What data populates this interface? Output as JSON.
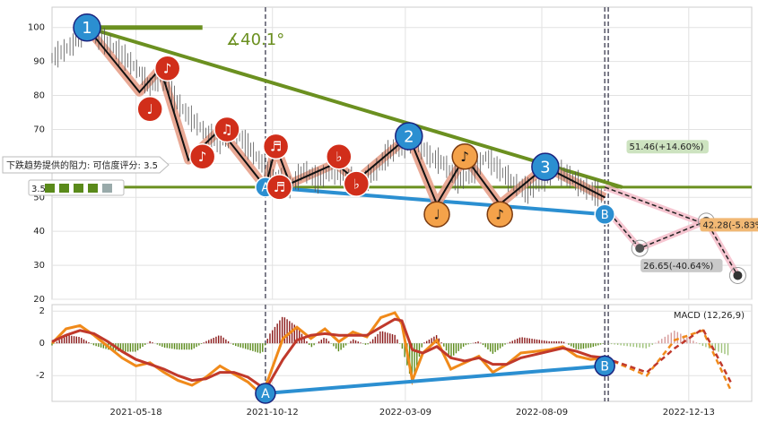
{
  "chart_data": {
    "type": "line",
    "panels": [
      {
        "name": "price",
        "ylim": [
          20,
          106
        ],
        "yticks": [
          20,
          30,
          40,
          50,
          60,
          70,
          80,
          90,
          100
        ],
        "series": [
          {
            "values": [
              [
                0,
                91
              ],
              [
                6,
                95
              ],
              [
                10,
                100
              ],
              [
                15,
                96
              ],
              [
                20,
                92
              ],
              [
                25,
                87
              ],
              [
                28,
                82
              ],
              [
                31,
                86
              ],
              [
                35,
                79
              ],
              [
                39,
                74
              ],
              [
                44,
                69
              ],
              [
                48,
                66
              ],
              [
                52,
                70
              ],
              [
                56,
                65
              ],
              [
                60,
                60
              ],
              [
                64,
                56
              ],
              [
                68,
                53
              ],
              [
                72,
                58
              ],
              [
                76,
                55
              ],
              [
                80,
                58
              ],
              [
                84,
                56
              ],
              [
                88,
                54
              ],
              [
                92,
                57
              ],
              [
                96,
                63
              ],
              [
                100,
                65
              ],
              [
                104,
                67
              ],
              [
                108,
                62
              ],
              [
                112,
                60
              ],
              [
                116,
                55
              ],
              [
                120,
                57
              ],
              [
                124,
                62
              ],
              [
                128,
                58
              ],
              [
                132,
                54
              ],
              [
                136,
                52
              ],
              [
                140,
                55
              ],
              [
                144,
                58
              ],
              [
                148,
                56
              ],
              [
                152,
                53
              ],
              [
                156,
                51
              ],
              [
                158,
                50
              ]
            ]
          }
        ],
        "zigzag": [
          [
            10,
            100
          ],
          [
            25,
            81
          ],
          [
            31,
            88
          ],
          [
            39,
            61
          ],
          [
            48,
            70
          ],
          [
            61,
            53
          ],
          [
            64,
            65
          ],
          [
            68,
            54
          ],
          [
            81,
            60
          ],
          [
            87,
            55
          ],
          [
            102,
            68
          ],
          [
            110,
            48
          ],
          [
            118,
            62
          ],
          [
            128,
            48
          ],
          [
            141,
            59
          ],
          [
            158,
            50
          ]
        ],
        "trend_down": [
          [
            10,
            100
          ],
          [
            163,
            53
          ]
        ],
        "support_line": 53,
        "support_lower": [
          [
            61,
            53
          ],
          [
            158,
            45
          ]
        ],
        "short_hline": [
          [
            10,
            100
          ],
          [
            43,
            100
          ]
        ],
        "waves": [
          {
            "x": 10,
            "y": 100,
            "label": "1",
            "kind": "blue"
          },
          {
            "x": 102,
            "y": 68,
            "label": "2",
            "kind": "blue"
          },
          {
            "x": 141,
            "y": 59,
            "label": "3",
            "kind": "blue"
          },
          {
            "x": 61,
            "y": 53,
            "label": "A",
            "kind": "blue_small"
          },
          {
            "x": 158,
            "y": 45,
            "label": "B",
            "kind": "blue_small"
          },
          {
            "x": 28,
            "y": 76,
            "label": "♩",
            "kind": "red"
          },
          {
            "x": 33,
            "y": 88,
            "label": "♪",
            "kind": "red"
          },
          {
            "x": 43,
            "y": 62,
            "label": "♪",
            "kind": "red"
          },
          {
            "x": 50,
            "y": 70,
            "label": "♫",
            "kind": "red"
          },
          {
            "x": 64,
            "y": 65,
            "label": "♬",
            "kind": "red"
          },
          {
            "x": 65,
            "y": 53,
            "label": "♬",
            "kind": "red"
          },
          {
            "x": 82,
            "y": 62,
            "label": "♭",
            "kind": "red"
          },
          {
            "x": 87,
            "y": 54,
            "label": "♭",
            "kind": "red"
          },
          {
            "x": 110,
            "y": 45,
            "label": "♩",
            "kind": "orange"
          },
          {
            "x": 118,
            "y": 62,
            "label": "♪",
            "kind": "orange"
          },
          {
            "x": 128,
            "y": 45,
            "label": "♪",
            "kind": "orange"
          }
        ],
        "forecast": [
          [
            158,
            47
          ],
          [
            168,
            35
          ],
          [
            187,
            43
          ],
          [
            196,
            27
          ]
        ],
        "forecast_line2": [
          [
            158,
            53
          ],
          [
            187,
            42
          ]
        ],
        "annotations": [
          {
            "text": "51.46(+14.60%)",
            "x": 165,
            "y": 64,
            "color": "#cde3c0"
          },
          {
            "text": "42.28(-5.83%)",
            "x": 186,
            "y": 41,
            "color": "#f1b874"
          },
          {
            "text": "26.65(-40.64%)",
            "x": 169,
            "y": 29,
            "color": "#c9c9c9"
          }
        ]
      },
      {
        "name": "macd",
        "ylim": [
          -3.6,
          2.4
        ],
        "yticks": [
          -2,
          0,
          2
        ],
        "label": "MACD (12,26,9)",
        "dif": [
          [
            0,
            0
          ],
          [
            4,
            0.9
          ],
          [
            8,
            1.1
          ],
          [
            12,
            0.5
          ],
          [
            16,
            -0.2
          ],
          [
            20,
            -0.9
          ],
          [
            24,
            -1.4
          ],
          [
            28,
            -1.2
          ],
          [
            32,
            -1.8
          ],
          [
            36,
            -2.3
          ],
          [
            40,
            -2.6
          ],
          [
            44,
            -2.1
          ],
          [
            48,
            -1.4
          ],
          [
            52,
            -1.9
          ],
          [
            56,
            -2.4
          ],
          [
            60,
            -3.2
          ],
          [
            62,
            -2.1
          ],
          [
            66,
            0.3
          ],
          [
            70,
            1.0
          ],
          [
            74,
            0.3
          ],
          [
            78,
            0.9
          ],
          [
            82,
            0.1
          ],
          [
            86,
            0.7
          ],
          [
            90,
            0.4
          ],
          [
            94,
            1.6
          ],
          [
            98,
            1.9
          ],
          [
            100,
            1.2
          ],
          [
            103,
            -2.3
          ],
          [
            106,
            -0.6
          ],
          [
            110,
            0.2
          ],
          [
            114,
            -1.6
          ],
          [
            118,
            -1.2
          ],
          [
            122,
            -0.8
          ],
          [
            126,
            -1.8
          ],
          [
            130,
            -1.3
          ],
          [
            134,
            -0.6
          ],
          [
            138,
            -0.5
          ],
          [
            142,
            -0.4
          ],
          [
            146,
            -0.2
          ],
          [
            150,
            -0.8
          ],
          [
            154,
            -1.0
          ],
          [
            158,
            -0.9
          ]
        ],
        "dea": [
          [
            0,
            0.1
          ],
          [
            4,
            0.5
          ],
          [
            8,
            0.8
          ],
          [
            12,
            0.6
          ],
          [
            16,
            0.1
          ],
          [
            20,
            -0.5
          ],
          [
            24,
            -1.0
          ],
          [
            28,
            -1.3
          ],
          [
            32,
            -1.6
          ],
          [
            36,
            -2.0
          ],
          [
            40,
            -2.3
          ],
          [
            44,
            -2.2
          ],
          [
            48,
            -1.8
          ],
          [
            52,
            -1.8
          ],
          [
            56,
            -2.1
          ],
          [
            60,
            -2.7
          ],
          [
            62,
            -2.5
          ],
          [
            66,
            -1.0
          ],
          [
            70,
            0.2
          ],
          [
            74,
            0.5
          ],
          [
            78,
            0.6
          ],
          [
            82,
            0.5
          ],
          [
            86,
            0.5
          ],
          [
            90,
            0.5
          ],
          [
            94,
            1.0
          ],
          [
            98,
            1.5
          ],
          [
            100,
            1.4
          ],
          [
            103,
            -0.4
          ],
          [
            106,
            -0.6
          ],
          [
            110,
            -0.2
          ],
          [
            114,
            -0.9
          ],
          [
            118,
            -1.1
          ],
          [
            122,
            -0.9
          ],
          [
            126,
            -1.3
          ],
          [
            130,
            -1.3
          ],
          [
            134,
            -0.9
          ],
          [
            138,
            -0.7
          ],
          [
            142,
            -0.5
          ],
          [
            146,
            -0.3
          ],
          [
            150,
            -0.5
          ],
          [
            154,
            -0.8
          ],
          [
            158,
            -0.9
          ]
        ],
        "dif_forecast": [
          [
            158,
            -0.9
          ],
          [
            170,
            -2.0
          ],
          [
            178,
            0.2
          ],
          [
            186,
            0.8
          ],
          [
            194,
            -2.9
          ]
        ],
        "dea_forecast": [
          [
            158,
            -0.9
          ],
          [
            170,
            -1.8
          ],
          [
            178,
            -0.3
          ],
          [
            186,
            0.9
          ],
          [
            194,
            -2.4
          ]
        ],
        "divergence": [
          [
            61,
            -3.1
          ],
          [
            158,
            -1.4
          ]
        ],
        "divergence_labels": [
          {
            "x": 61,
            "y": -3.1,
            "label": "A"
          },
          {
            "x": 158,
            "y": -1.4,
            "label": "B"
          }
        ]
      }
    ],
    "xlim": [
      0,
      200
    ],
    "xticks": [
      {
        "x": 24,
        "label": "2021-05-18"
      },
      {
        "x": 63,
        "label": "2021-10-12"
      },
      {
        "x": 101,
        "label": "2022-03-09"
      },
      {
        "x": 140,
        "label": "2022-08-09"
      },
      {
        "x": 182,
        "label": "2022-12-13"
      }
    ],
    "vlines": [
      61,
      158,
      159
    ],
    "angle_label": "∡40.1°",
    "callout": "下跌趋势提供的阻力: 可信度评分: 3.5",
    "rating": "3.5",
    "colors": {
      "trend": "#6b9020",
      "support": "#6b9020",
      "divergence": "#2b8fd1",
      "zigzag_hi": "#e7a08a",
      "dif": "#f08a1a",
      "dea": "#c0392b",
      "hist_pos": "#8b1a1a",
      "hist_neg": "#5a8a1a"
    }
  }
}
